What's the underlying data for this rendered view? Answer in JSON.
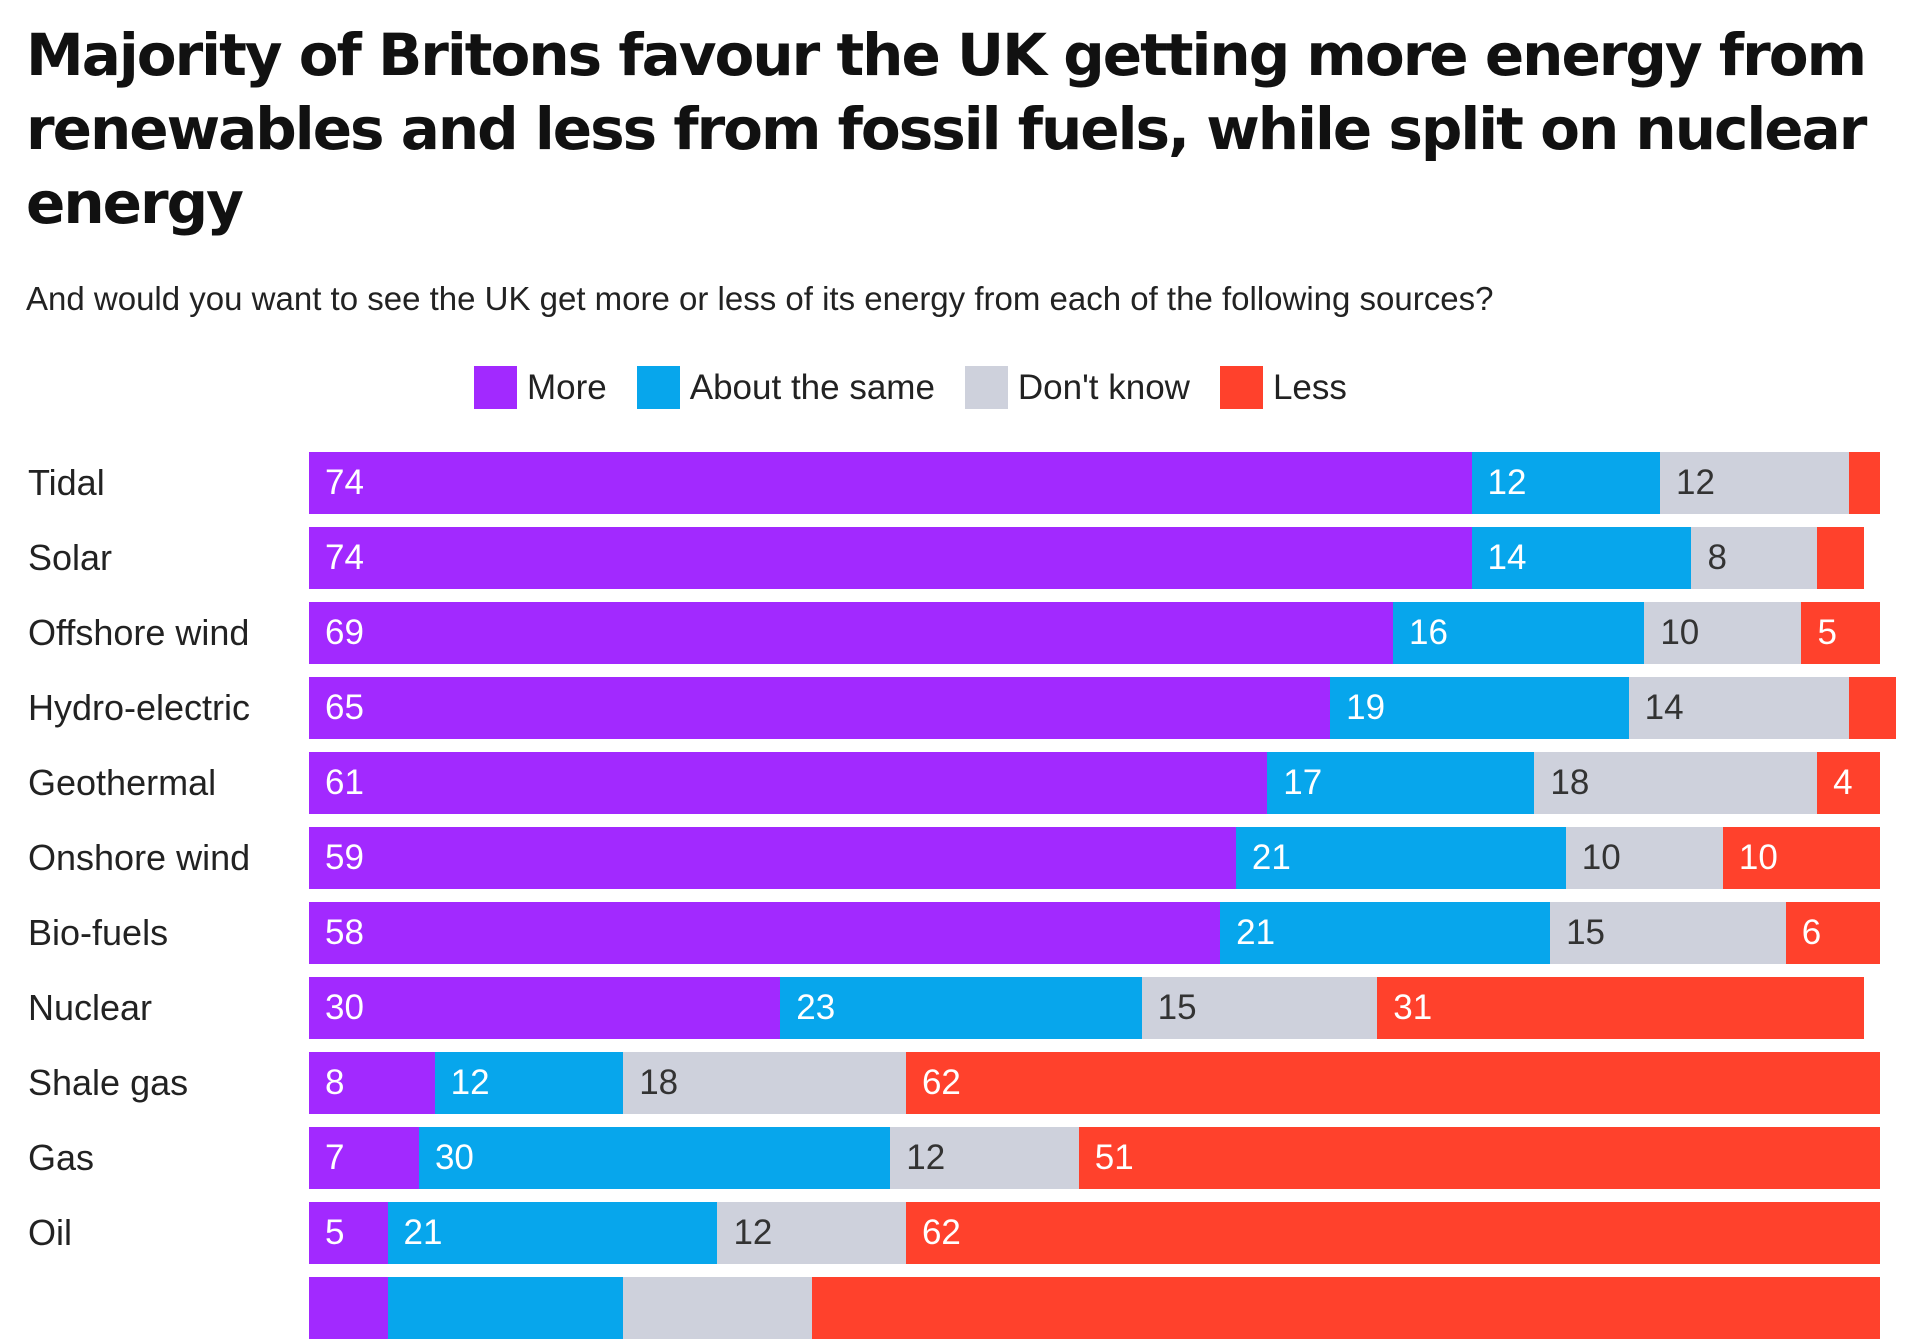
{
  "chart_data": {
    "type": "bar",
    "orientation": "horizontal",
    "stacked": true,
    "title": "Majority of Britons favour the UK getting more energy from renewables and less from fossil fuels, while split on nuclear energy",
    "subtitle": "And would you want to see the UK get more or less of its energy from each of the following sources?",
    "legend_position": "top",
    "grid": false,
    "xlim": [
      0,
      100
    ],
    "categories": [
      "Tidal",
      "Solar",
      "Offshore wind",
      "Hydro-electric",
      "Geothermal",
      "Onshore wind",
      "Bio-fuels",
      "Nuclear",
      "Shale gas",
      "Gas",
      "Oil",
      ""
    ],
    "series": [
      {
        "name": "More",
        "color": "#a229ff",
        "text_color": "#ffffff",
        "values": [
          74,
          74,
          69,
          65,
          61,
          59,
          58,
          30,
          8,
          7,
          5,
          5
        ],
        "labels": [
          "74",
          "74",
          "69",
          "65",
          "61",
          "59",
          "58",
          "30",
          "8",
          "7",
          "5",
          ""
        ]
      },
      {
        "name": "About the same",
        "color": "#07a6ec",
        "text_color": "#ffffff",
        "values": [
          12,
          14,
          16,
          19,
          17,
          21,
          21,
          23,
          12,
          30,
          21,
          15
        ],
        "labels": [
          "12",
          "14",
          "16",
          "19",
          "17",
          "21",
          "21",
          "23",
          "12",
          "30",
          "21",
          ""
        ]
      },
      {
        "name": "Don't know",
        "color": "#ced1dc",
        "text_color": "#333333",
        "values": [
          12,
          8,
          10,
          14,
          18,
          10,
          15,
          15,
          18,
          12,
          12,
          12
        ],
        "labels": [
          "12",
          "8",
          "10",
          "14",
          "18",
          "10",
          "15",
          "15",
          "18",
          "12",
          "12",
          ""
        ]
      },
      {
        "name": "Less",
        "color": "#ff412c",
        "text_color": "#ffffff",
        "values": [
          2,
          3,
          5,
          3,
          4,
          10,
          6,
          31,
          62,
          51,
          62,
          68
        ],
        "labels": [
          "",
          "",
          "5",
          "",
          "4",
          "10",
          "6",
          "31",
          "62",
          "51",
          "62",
          ""
        ]
      }
    ]
  }
}
